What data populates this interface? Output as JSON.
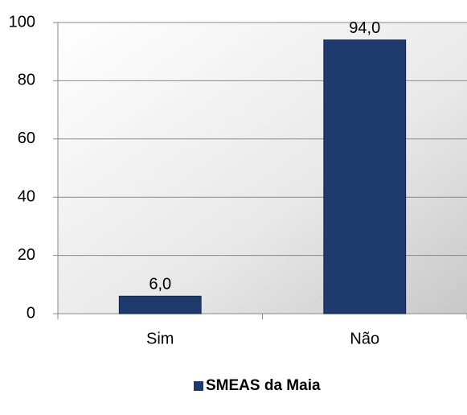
{
  "chart_data": {
    "type": "bar",
    "categories": [
      "Sim",
      "Não"
    ],
    "series": [
      {
        "name": "SMEAS da Maia",
        "color": "#1f3b6e",
        "values": [
          6,
          94
        ],
        "value_labels": [
          "6,0",
          "94,0"
        ]
      }
    ],
    "ylim": [
      0,
      100
    ],
    "yticks": [
      0,
      20,
      40,
      60,
      80,
      100
    ],
    "grid": true,
    "legend": "bottom"
  }
}
